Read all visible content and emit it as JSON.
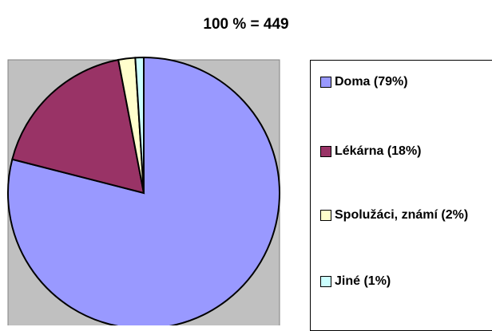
{
  "chart_data": {
    "type": "pie",
    "title": "100 % = 449",
    "categories": [
      "Doma (79%)",
      "Lékárna (18%)",
      "Spolužáci, známí (2%)",
      "Jiné (1%)"
    ],
    "values": [
      79,
      18,
      2,
      1
    ],
    "colors": [
      "#9999ff",
      "#993366",
      "#ffffcc",
      "#ccffff"
    ],
    "legend": "right"
  }
}
